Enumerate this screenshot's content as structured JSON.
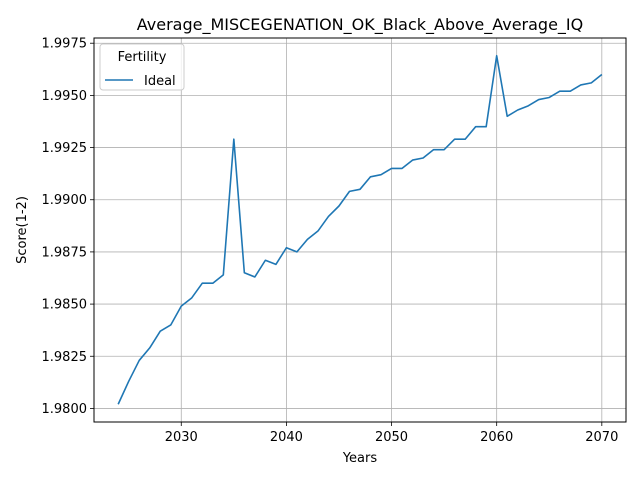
{
  "chart_data": {
    "type": "line",
    "title": "Average_MISCEGENATION_OK_Black_Above_Average_IQ",
    "xlabel": "Years",
    "ylabel": "Score(1-2)",
    "xlim": [
      2021.7,
      2072.3
    ],
    "ylim": [
      1.97935,
      1.99775
    ],
    "x_ticks": [
      2030,
      2040,
      2050,
      2060,
      2070
    ],
    "y_ticks": [
      1.98,
      1.9825,
      1.985,
      1.9875,
      1.99,
      1.9925,
      1.995,
      1.9975
    ],
    "y_tick_labels": [
      "1.9800",
      "1.9825",
      "1.9850",
      "1.9875",
      "1.9900",
      "1.9925",
      "1.9950",
      "1.9975"
    ],
    "grid": true,
    "legend": {
      "title": "Fertility",
      "placement": "top-left"
    },
    "series": [
      {
        "name": "Ideal",
        "color": "#1f77b4",
        "x": [
          2024,
          2025,
          2026,
          2027,
          2028,
          2029,
          2030,
          2031,
          2032,
          2033,
          2034,
          2035,
          2036,
          2037,
          2038,
          2039,
          2040,
          2041,
          2042,
          2043,
          2044,
          2045,
          2046,
          2047,
          2048,
          2049,
          2050,
          2051,
          2052,
          2053,
          2054,
          2055,
          2056,
          2057,
          2058,
          2059,
          2060,
          2061,
          2062,
          2063,
          2064,
          2065,
          2066,
          2067,
          2068,
          2069,
          2070
        ],
        "y": [
          1.9802,
          1.9813,
          1.9823,
          1.9829,
          1.9837,
          1.984,
          1.9849,
          1.9853,
          1.986,
          1.986,
          1.9864,
          1.9929,
          1.9865,
          1.9863,
          1.9871,
          1.9869,
          1.9877,
          1.9875,
          1.9881,
          1.9885,
          1.9892,
          1.9897,
          1.9904,
          1.9905,
          1.9911,
          1.9912,
          1.9915,
          1.9915,
          1.9919,
          1.992,
          1.9924,
          1.9924,
          1.9929,
          1.9929,
          1.9935,
          1.9935,
          1.9969,
          1.994,
          1.9943,
          1.9945,
          1.9948,
          1.9949,
          1.9952,
          1.9952,
          1.9955,
          1.9956,
          1.996
        ]
      }
    ]
  }
}
